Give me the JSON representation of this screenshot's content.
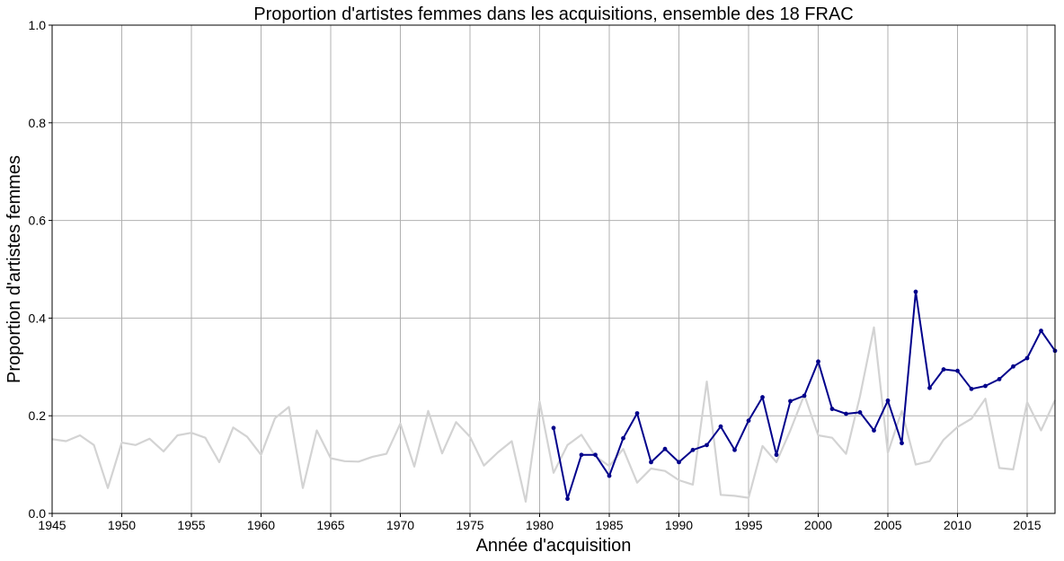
{
  "chart_data": {
    "type": "line",
    "title": "Proportion d'artistes femmes dans les acquisitions, ensemble des 18 FRAC",
    "xlabel": "Année d'acquisition",
    "ylabel": "Proportion d'artistes femmes",
    "xlim": [
      1945,
      2017
    ],
    "ylim": [
      0,
      1
    ],
    "xticks": [
      1945,
      1950,
      1955,
      1960,
      1965,
      1970,
      1975,
      1980,
      1985,
      1990,
      1995,
      2000,
      2005,
      2010,
      2015
    ],
    "yticks": [
      0.0,
      0.2,
      0.4,
      0.6,
      0.8,
      1.0
    ],
    "grid": true,
    "series": [
      {
        "color": "#d3d3d3",
        "markers": false,
        "x": [
          1945,
          1946,
          1947,
          1948,
          1949,
          1950,
          1951,
          1952,
          1953,
          1954,
          1955,
          1956,
          1957,
          1958,
          1959,
          1960,
          1961,
          1962,
          1963,
          1964,
          1965,
          1966,
          1967,
          1968,
          1969,
          1970,
          1971,
          1972,
          1973,
          1974,
          1975,
          1976,
          1977,
          1978,
          1979,
          1980,
          1981,
          1982,
          1983,
          1984,
          1985,
          1986,
          1987,
          1988,
          1989,
          1990,
          1991,
          1992,
          1993,
          1994,
          1995,
          1996,
          1997,
          1998,
          1999,
          2000,
          2001,
          2002,
          2003,
          2004,
          2005,
          2006,
          2007,
          2008,
          2009,
          2010,
          2011,
          2012,
          2013,
          2014,
          2015,
          2016,
          2017
        ],
        "y": [
          0.152,
          0.148,
          0.16,
          0.14,
          0.052,
          0.145,
          0.14,
          0.153,
          0.127,
          0.16,
          0.165,
          0.155,
          0.105,
          0.176,
          0.157,
          0.12,
          0.195,
          0.218,
          0.052,
          0.17,
          0.113,
          0.107,
          0.106,
          0.116,
          0.122,
          0.184,
          0.096,
          0.21,
          0.123,
          0.187,
          0.157,
          0.098,
          0.125,
          0.148,
          0.024,
          0.229,
          0.083,
          0.14,
          0.161,
          0.117,
          0.097,
          0.132,
          0.063,
          0.092,
          0.087,
          0.068,
          0.059,
          0.27,
          0.038,
          0.036,
          0.032,
          0.138,
          0.105,
          0.17,
          0.243,
          0.16,
          0.155,
          0.122,
          0.24,
          0.381,
          0.124,
          0.21,
          0.1,
          0.107,
          0.151,
          0.177,
          0.194,
          0.235,
          0.093,
          0.09,
          0.228,
          0.17,
          0.232
        ]
      },
      {
        "color": "#00008b",
        "markers": true,
        "x": [
          1981,
          1982,
          1983,
          1984,
          1985,
          1986,
          1987,
          1988,
          1989,
          1990,
          1991,
          1992,
          1993,
          1994,
          1995,
          1996,
          1997,
          1998,
          1999,
          2000,
          2001,
          2002,
          2003,
          2004,
          2005,
          2006,
          2007,
          2008,
          2009,
          2010,
          2011,
          2012,
          2013,
          2014,
          2015,
          2016,
          2017
        ],
        "y": [
          0.175,
          0.03,
          0.12,
          0.12,
          0.077,
          0.154,
          0.205,
          0.105,
          0.132,
          0.105,
          0.13,
          0.14,
          0.178,
          0.13,
          0.19,
          0.238,
          0.12,
          0.23,
          0.241,
          0.311,
          0.214,
          0.204,
          0.207,
          0.17,
          0.231,
          0.144,
          0.454,
          0.257,
          0.295,
          0.292,
          0.255,
          0.261,
          0.275,
          0.301,
          0.318,
          0.374,
          0.333
        ]
      }
    ]
  }
}
